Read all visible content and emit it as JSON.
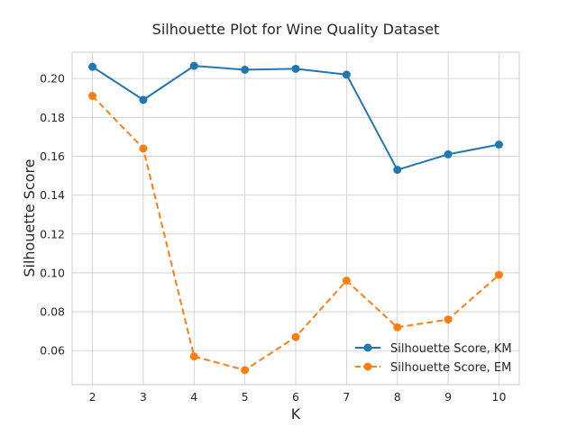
{
  "chart_data": {
    "type": "line",
    "title": "Silhouette Plot for Wine Quality Dataset",
    "xlabel": "K",
    "ylabel": "Silhouette Score",
    "x": [
      2,
      3,
      4,
      5,
      6,
      7,
      8,
      9,
      10
    ],
    "xlim": [
      1.6,
      10.4
    ],
    "ylim": [
      0.0425,
      0.2135
    ],
    "yticks": [
      0.06,
      0.08,
      0.1,
      0.12,
      0.14,
      0.16,
      0.18,
      0.2
    ],
    "ytick_labels": [
      "0.06",
      "0.08",
      "0.10",
      "0.12",
      "0.14",
      "0.16",
      "0.18",
      "0.20"
    ],
    "xtick_labels": [
      "2",
      "3",
      "4",
      "5",
      "6",
      "7",
      "8",
      "9",
      "10"
    ],
    "grid": true,
    "legend_position": "lower-right",
    "series": [
      {
        "name": "Silhouette Score, KM",
        "values": [
          0.206,
          0.189,
          0.2065,
          0.2045,
          0.205,
          0.202,
          0.153,
          0.161,
          0.166
        ],
        "color": "#1f77b4",
        "linestyle": "solid",
        "marker": "circle"
      },
      {
        "name": "Silhouette Score, EM",
        "values": [
          0.191,
          0.164,
          0.057,
          0.05,
          0.067,
          0.096,
          0.072,
          0.076,
          0.099
        ],
        "color": "#ff7f0e",
        "linestyle": "dashed",
        "marker": "circle"
      }
    ]
  }
}
